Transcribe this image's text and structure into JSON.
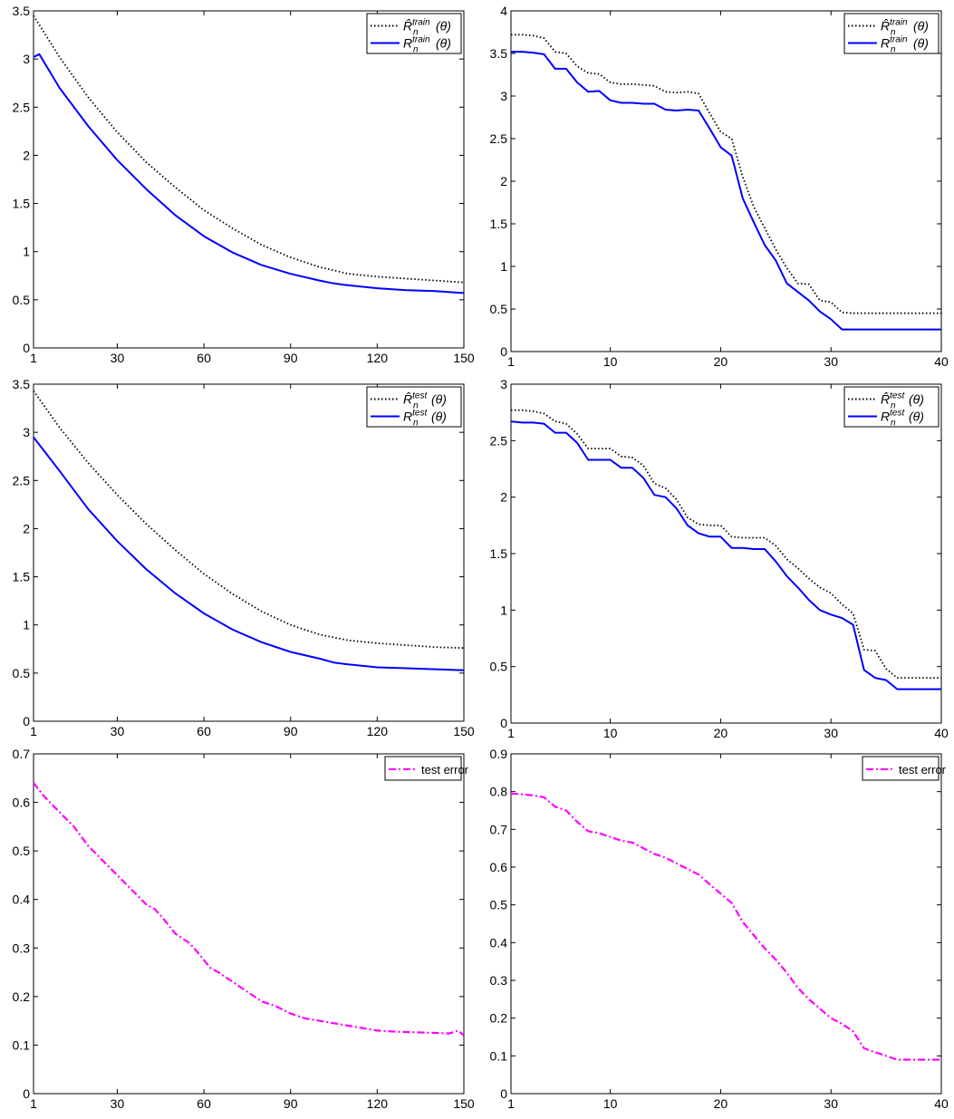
{
  "chart_data": [
    {
      "type": "line",
      "panel": "top-left",
      "xlim": [
        1,
        150
      ],
      "ylim": [
        0,
        3.5
      ],
      "xticks": [
        1,
        30,
        60,
        90,
        120,
        150
      ],
      "yticks": [
        0,
        0.5,
        1,
        1.5,
        2,
        2.5,
        3,
        3.5
      ],
      "legend_position": "top-right",
      "series": [
        {
          "name": "R̂ₙᵗʳᵃⁱⁿ(θ)",
          "legend": {
            "base": "R",
            "hat": true,
            "sup": "train"
          },
          "color": "#000000",
          "style": "dotted",
          "x": [
            1,
            10,
            20,
            30,
            40,
            50,
            60,
            70,
            80,
            90,
            100,
            110,
            120,
            130,
            140,
            150
          ],
          "y": [
            3.45,
            3.02,
            2.6,
            2.24,
            1.93,
            1.67,
            1.43,
            1.24,
            1.07,
            0.94,
            0.84,
            0.77,
            0.74,
            0.72,
            0.7,
            0.68
          ]
        },
        {
          "name": "Rₙᵗʳᵃⁱⁿ(θ)",
          "legend": {
            "base": "R",
            "hat": false,
            "sup": "train"
          },
          "color": "#0000ff",
          "style": "solid",
          "x": [
            1,
            3,
            10,
            20,
            30,
            40,
            50,
            60,
            70,
            80,
            90,
            100,
            105,
            110,
            120,
            130,
            140,
            150
          ],
          "y": [
            3.02,
            3.05,
            2.7,
            2.3,
            1.95,
            1.65,
            1.38,
            1.16,
            0.99,
            0.86,
            0.77,
            0.7,
            0.67,
            0.65,
            0.62,
            0.6,
            0.59,
            0.57
          ]
        }
      ]
    },
    {
      "type": "line",
      "panel": "top-right",
      "xlim": [
        1,
        40
      ],
      "ylim": [
        0,
        4
      ],
      "xticks": [
        1,
        10,
        20,
        30,
        40
      ],
      "yticks": [
        0,
        0.5,
        1,
        1.5,
        2,
        2.5,
        3,
        3.5,
        4
      ],
      "legend_position": "top-right",
      "series": [
        {
          "name": "R̂ₙᵗʳᵃⁱⁿ(θ)",
          "legend": {
            "base": "R",
            "hat": true,
            "sup": "train"
          },
          "color": "#000000",
          "style": "dotted",
          "x": [
            1,
            2,
            3,
            4,
            5,
            6,
            7,
            8,
            9,
            10,
            11,
            12,
            13,
            14,
            15,
            16,
            17,
            18,
            19,
            20,
            21,
            22,
            23,
            24,
            25,
            26,
            27,
            28,
            29,
            30,
            31,
            32,
            40
          ],
          "y": [
            3.72,
            3.72,
            3.71,
            3.68,
            3.52,
            3.5,
            3.35,
            3.27,
            3.26,
            3.16,
            3.14,
            3.14,
            3.13,
            3.12,
            3.05,
            3.04,
            3.05,
            3.03,
            2.8,
            2.58,
            2.5,
            2.05,
            1.7,
            1.45,
            1.2,
            0.98,
            0.8,
            0.79,
            0.6,
            0.58,
            0.46,
            0.45,
            0.45
          ]
        },
        {
          "name": "Rₙᵗʳᵃⁱⁿ(θ)",
          "legend": {
            "base": "R",
            "hat": false,
            "sup": "train"
          },
          "color": "#0000ff",
          "style": "solid",
          "x": [
            1,
            2,
            3,
            4,
            5,
            6,
            7,
            8,
            9,
            10,
            11,
            12,
            13,
            14,
            15,
            16,
            17,
            18,
            19,
            20,
            21,
            22,
            23,
            24,
            25,
            26,
            27,
            28,
            29,
            30,
            31,
            32,
            40
          ],
          "y": [
            3.52,
            3.52,
            3.51,
            3.49,
            3.32,
            3.32,
            3.16,
            3.05,
            3.06,
            2.95,
            2.92,
            2.92,
            2.91,
            2.91,
            2.84,
            2.83,
            2.84,
            2.83,
            2.62,
            2.4,
            2.3,
            1.8,
            1.52,
            1.25,
            1.07,
            0.8,
            0.7,
            0.6,
            0.47,
            0.38,
            0.26,
            0.26,
            0.26
          ]
        }
      ]
    },
    {
      "type": "line",
      "panel": "middle-left",
      "xlim": [
        1,
        150
      ],
      "ylim": [
        0,
        3.5
      ],
      "xticks": [
        1,
        30,
        60,
        90,
        120,
        150
      ],
      "yticks": [
        0,
        0.5,
        1,
        1.5,
        2,
        2.5,
        3,
        3.5
      ],
      "legend_position": "top-right",
      "series": [
        {
          "name": "R̂ₙᵗᵉˢᵗ(θ)",
          "legend": {
            "base": "R",
            "hat": true,
            "sup": "test"
          },
          "color": "#000000",
          "style": "dotted",
          "x": [
            1,
            10,
            20,
            30,
            40,
            50,
            60,
            70,
            80,
            90,
            100,
            110,
            120,
            130,
            140,
            150
          ],
          "y": [
            3.43,
            3.05,
            2.68,
            2.35,
            2.05,
            1.78,
            1.53,
            1.32,
            1.14,
            1.0,
            0.9,
            0.84,
            0.81,
            0.79,
            0.77,
            0.76
          ]
        },
        {
          "name": "Rₙᵗᵉˢᵗ(θ)",
          "legend": {
            "base": "R",
            "hat": false,
            "sup": "test"
          },
          "color": "#0000ff",
          "style": "solid",
          "x": [
            1,
            10,
            20,
            30,
            40,
            50,
            60,
            70,
            80,
            90,
            100,
            105,
            110,
            120,
            130,
            140,
            150
          ],
          "y": [
            2.95,
            2.6,
            2.2,
            1.87,
            1.58,
            1.33,
            1.12,
            0.95,
            0.82,
            0.72,
            0.65,
            0.61,
            0.59,
            0.56,
            0.55,
            0.54,
            0.53
          ]
        }
      ]
    },
    {
      "type": "line",
      "panel": "middle-right",
      "xlim": [
        1,
        40
      ],
      "ylim": [
        0,
        3
      ],
      "xticks": [
        1,
        10,
        20,
        30,
        40
      ],
      "yticks": [
        0,
        0.5,
        1,
        1.5,
        2,
        2.5,
        3
      ],
      "legend_position": "top-right",
      "series": [
        {
          "name": "R̂ₙᵗᵉˢᵗ(θ)",
          "legend": {
            "base": "R",
            "hat": true,
            "sup": "test"
          },
          "color": "#000000",
          "style": "dotted",
          "x": [
            1,
            2,
            3,
            4,
            5,
            6,
            7,
            8,
            9,
            10,
            11,
            12,
            13,
            14,
            15,
            16,
            17,
            18,
            19,
            20,
            21,
            22,
            23,
            24,
            25,
            26,
            27,
            28,
            29,
            30,
            31,
            32,
            33,
            34,
            35,
            36,
            40
          ],
          "y": [
            2.77,
            2.77,
            2.76,
            2.74,
            2.67,
            2.65,
            2.56,
            2.43,
            2.43,
            2.43,
            2.36,
            2.35,
            2.28,
            2.12,
            2.08,
            1.98,
            1.82,
            1.76,
            1.75,
            1.75,
            1.65,
            1.64,
            1.64,
            1.64,
            1.57,
            1.45,
            1.37,
            1.28,
            1.2,
            1.15,
            1.05,
            0.97,
            0.65,
            0.64,
            0.48,
            0.4,
            0.4
          ]
        },
        {
          "name": "Rₙᵗᵉˢᵗ(θ)",
          "legend": {
            "base": "R",
            "hat": false,
            "sup": "test"
          },
          "color": "#0000ff",
          "style": "solid",
          "x": [
            1,
            2,
            3,
            4,
            5,
            6,
            7,
            8,
            9,
            10,
            11,
            12,
            13,
            14,
            15,
            16,
            17,
            18,
            19,
            20,
            21,
            22,
            23,
            24,
            25,
            26,
            27,
            28,
            29,
            30,
            31,
            32,
            33,
            34,
            35,
            36,
            40
          ],
          "y": [
            2.67,
            2.66,
            2.66,
            2.65,
            2.57,
            2.57,
            2.48,
            2.33,
            2.33,
            2.33,
            2.26,
            2.26,
            2.17,
            2.02,
            2.0,
            1.9,
            1.75,
            1.68,
            1.65,
            1.65,
            1.55,
            1.55,
            1.54,
            1.54,
            1.43,
            1.3,
            1.2,
            1.09,
            1.0,
            0.96,
            0.93,
            0.87,
            0.47,
            0.4,
            0.38,
            0.3,
            0.3
          ]
        }
      ]
    },
    {
      "type": "line",
      "panel": "bottom-left",
      "xlim": [
        1,
        150
      ],
      "ylim": [
        0,
        0.7
      ],
      "xticks": [
        1,
        30,
        60,
        90,
        120,
        150
      ],
      "yticks": [
        0,
        0.1,
        0.2,
        0.3,
        0.4,
        0.5,
        0.6,
        0.7
      ],
      "legend_position": "top-right",
      "series": [
        {
          "name": "test error",
          "legend": {
            "text": "test error"
          },
          "color": "#ff00ff",
          "style": "dashdot",
          "x": [
            1,
            5,
            10,
            15,
            20,
            25,
            30,
            35,
            40,
            43,
            46,
            50,
            55,
            58,
            62,
            65,
            70,
            75,
            80,
            85,
            90,
            95,
            100,
            105,
            110,
            115,
            120,
            125,
            130,
            135,
            140,
            145,
            148,
            150
          ],
          "y": [
            0.64,
            0.61,
            0.58,
            0.55,
            0.51,
            0.48,
            0.45,
            0.42,
            0.39,
            0.38,
            0.36,
            0.33,
            0.31,
            0.29,
            0.26,
            0.25,
            0.23,
            0.21,
            0.19,
            0.18,
            0.165,
            0.155,
            0.15,
            0.145,
            0.14,
            0.135,
            0.13,
            0.128,
            0.127,
            0.126,
            0.125,
            0.124,
            0.13,
            0.12
          ]
        }
      ]
    },
    {
      "type": "line",
      "panel": "bottom-right",
      "xlim": [
        1,
        40
      ],
      "ylim": [
        0,
        0.9
      ],
      "xticks": [
        1,
        10,
        20,
        30,
        40
      ],
      "yticks": [
        0,
        0.1,
        0.2,
        0.3,
        0.4,
        0.5,
        0.6,
        0.7,
        0.8,
        0.9
      ],
      "legend_position": "top-right",
      "series": [
        {
          "name": "test error",
          "legend": {
            "text": "test error"
          },
          "color": "#ff00ff",
          "style": "dashdot",
          "x": [
            1,
            2,
            3,
            4,
            5,
            6,
            7,
            8,
            9,
            10,
            11,
            12,
            13,
            14,
            15,
            16,
            17,
            18,
            19,
            20,
            21,
            22,
            23,
            24,
            25,
            26,
            27,
            28,
            29,
            30,
            31,
            32,
            33,
            34,
            35,
            36,
            37,
            38,
            39,
            40
          ],
          "y": [
            0.795,
            0.793,
            0.79,
            0.785,
            0.76,
            0.75,
            0.72,
            0.695,
            0.69,
            0.68,
            0.67,
            0.665,
            0.65,
            0.635,
            0.625,
            0.61,
            0.595,
            0.58,
            0.555,
            0.53,
            0.505,
            0.455,
            0.42,
            0.385,
            0.355,
            0.32,
            0.28,
            0.25,
            0.225,
            0.2,
            0.185,
            0.165,
            0.12,
            0.11,
            0.1,
            0.09,
            0.09,
            0.09,
            0.09,
            0.09
          ]
        }
      ]
    }
  ]
}
